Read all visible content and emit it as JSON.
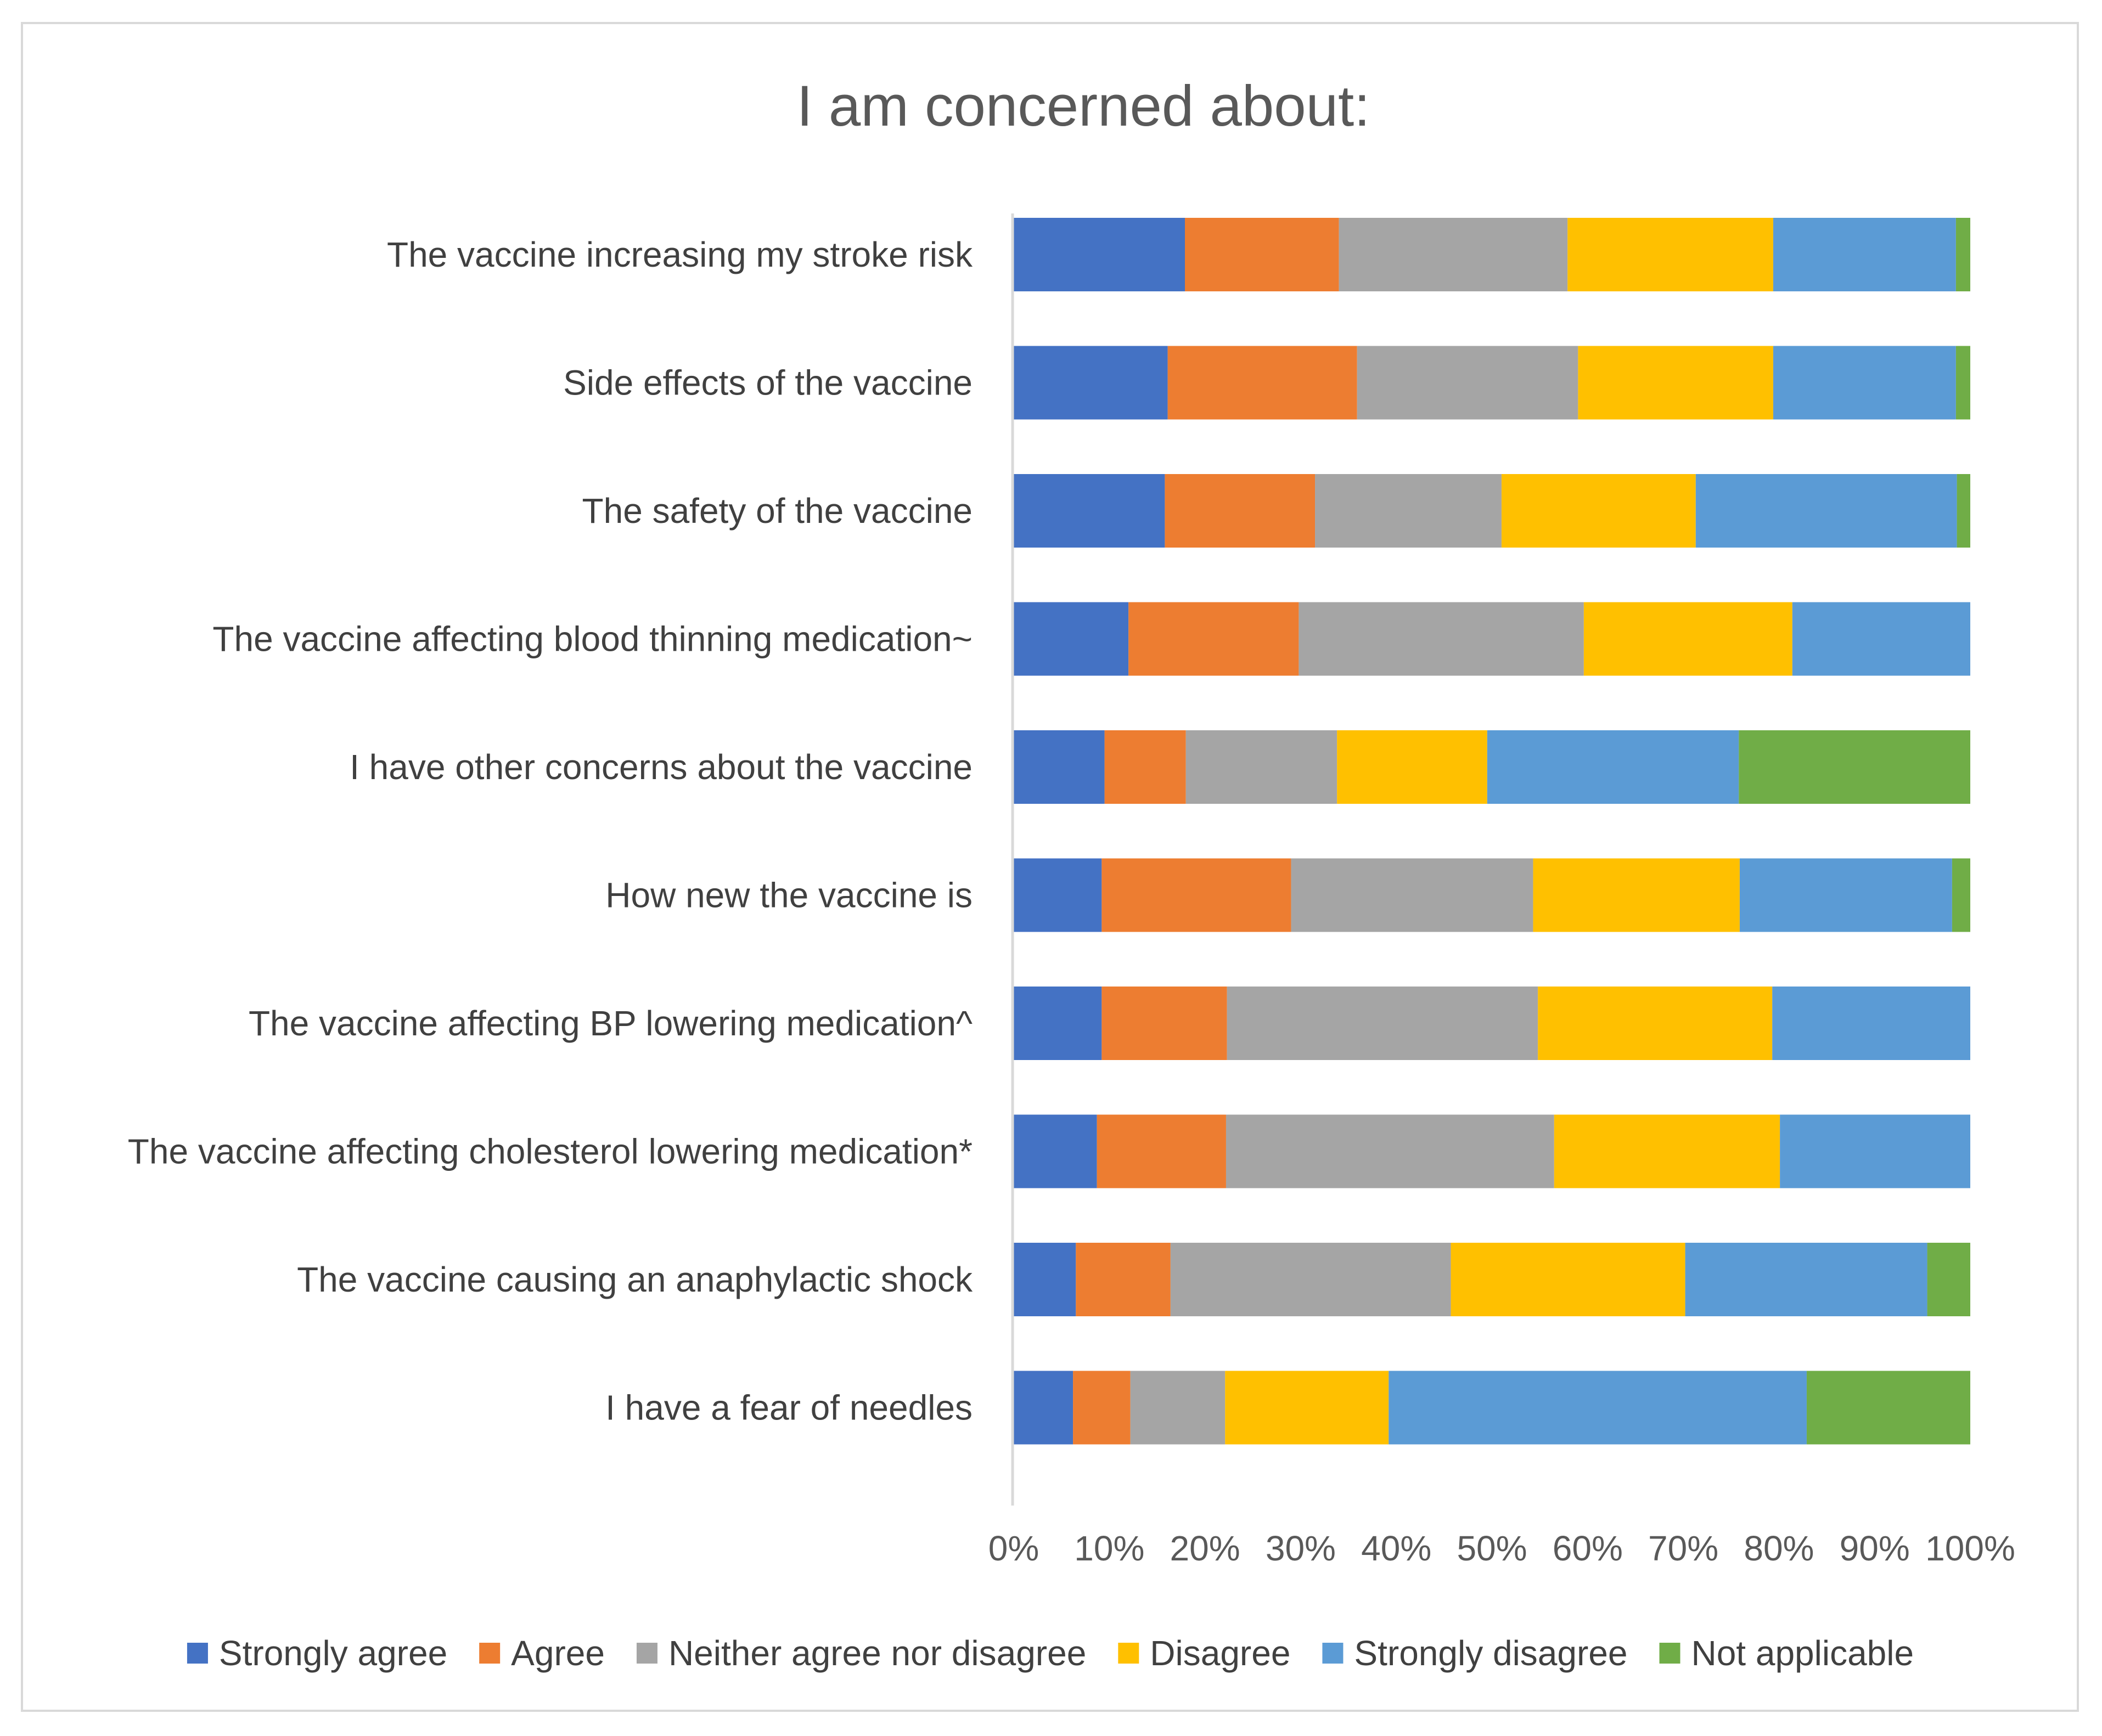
{
  "chart_data": {
    "type": "bar",
    "orientation": "horizontal",
    "stacked": "100%",
    "title": "I am concerned about:",
    "xlabel": "",
    "ylabel": "",
    "xlim": [
      0,
      100
    ],
    "x_ticks": [
      "0%",
      "10%",
      "20%",
      "30%",
      "40%",
      "50%",
      "60%",
      "70%",
      "80%",
      "90%",
      "100%"
    ],
    "grid": false,
    "legend_position": "bottom",
    "categories": [
      "The vaccine increasing my stroke risk",
      "Side effects of the vaccine",
      "The safety of the vaccine",
      "The vaccine affecting blood thinning medication~",
      "I have other concerns about the vaccine",
      "How new the vaccine is",
      "The vaccine affecting BP lowering medication^",
      "The vaccine affecting cholesterol lowering medication*",
      "The vaccine causing an anaphylactic shock",
      "I have a fear of needles"
    ],
    "series": [
      {
        "name": "Strongly agree",
        "color": "#4472C4",
        "values": [
          17.9,
          16.1,
          15.8,
          12.0,
          9.5,
          9.2,
          9.2,
          8.7,
          6.5,
          6.2
        ]
      },
      {
        "name": "Agree",
        "color": "#ED7D31",
        "values": [
          16.1,
          19.8,
          15.7,
          17.8,
          8.5,
          19.8,
          13.1,
          13.5,
          9.9,
          6.0
        ]
      },
      {
        "name": "Neither agree nor disagree",
        "color": "#A5A5A5",
        "values": [
          23.9,
          23.1,
          19.5,
          29.8,
          15.8,
          25.3,
          32.5,
          34.3,
          29.3,
          9.9
        ]
      },
      {
        "name": "Disagree",
        "color": "#FFC000",
        "values": [
          21.5,
          20.4,
          20.3,
          21.8,
          15.7,
          21.6,
          24.5,
          23.6,
          24.5,
          17.1
        ]
      },
      {
        "name": "Strongly disagree",
        "color": "#5B9BD5",
        "values": [
          19.1,
          19.1,
          27.3,
          18.6,
          26.3,
          22.2,
          20.7,
          19.9,
          25.3,
          43.7
        ]
      },
      {
        "name": "Not applicable",
        "color": "#70AD47",
        "values": [
          1.5,
          1.5,
          1.4,
          0.0,
          24.2,
          1.9,
          0.0,
          0.0,
          4.5,
          17.1
        ]
      }
    ]
  }
}
